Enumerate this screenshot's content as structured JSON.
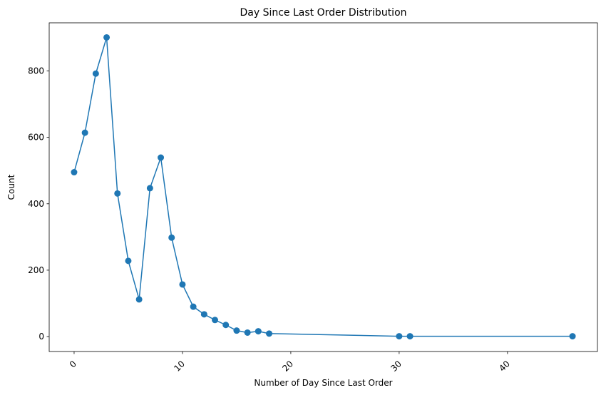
{
  "chart_data": {
    "type": "line",
    "title": "Day Since Last Order Distribution",
    "xlabel": "Number of Day Since Last Order",
    "ylabel": "Count",
    "xlim": [
      -2.3,
      48.3
    ],
    "ylim": [
      -45,
      945
    ],
    "xticks": [
      0,
      10,
      20,
      30,
      40
    ],
    "xtick_labels": [
      "0",
      "10",
      "20",
      "30",
      "40"
    ],
    "xtick_rotation": 45,
    "yticks": [
      0,
      200,
      400,
      600,
      800
    ],
    "ytick_labels": [
      "0",
      "200",
      "400",
      "600",
      "800"
    ],
    "grid": false,
    "legend": false,
    "series": [
      {
        "color": "#1f77b4",
        "marker": "circle",
        "x": [
          0,
          1,
          2,
          3,
          4,
          5,
          6,
          7,
          8,
          9,
          10,
          11,
          12,
          13,
          14,
          15,
          16,
          17,
          18,
          30,
          31,
          46
        ],
        "y": [
          495,
          614,
          792,
          901,
          431,
          228,
          112,
          447,
          539,
          298,
          157,
          90,
          67,
          50,
          35,
          18,
          12,
          16,
          9,
          1,
          1,
          1
        ]
      }
    ]
  }
}
